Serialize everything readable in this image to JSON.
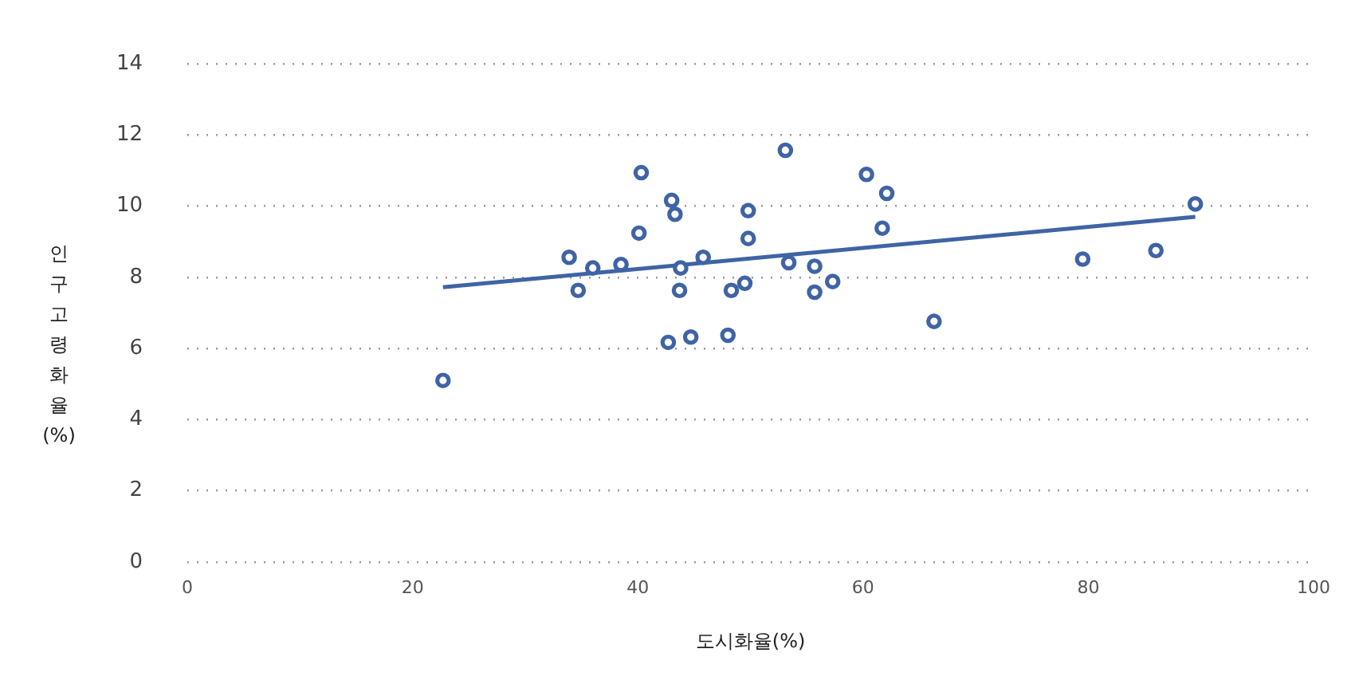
{
  "chart_data": {
    "type": "scatter",
    "xlabel": "도시화율(%)",
    "ylabel": "인구고령화율(%)",
    "xlim": [
      0,
      100
    ],
    "xticks": [
      0,
      20,
      40,
      60,
      80,
      100
    ],
    "ylim": [
      0,
      14
    ],
    "yticks": [
      0,
      2,
      4,
      6,
      8,
      10,
      12,
      14
    ],
    "grid": "y",
    "legend": false,
    "series": [
      {
        "marker": "circle",
        "color": "#3f64a5",
        "x": [
          22.7,
          33.9,
          34.7,
          36.0,
          38.5,
          40.1,
          40.3,
          42.7,
          43.0,
          43.3,
          43.7,
          43.8,
          44.7,
          45.8,
          48.0,
          48.3,
          49.5,
          49.8,
          49.8,
          53.1,
          53.4,
          55.7,
          55.7,
          57.3,
          60.3,
          61.7,
          62.1,
          66.3,
          79.5,
          86.0,
          89.5
        ],
        "values": [
          5.1,
          8.56,
          7.63,
          8.26,
          8.36,
          9.24,
          10.94,
          6.17,
          10.16,
          9.77,
          7.63,
          8.26,
          6.32,
          8.56,
          6.37,
          7.63,
          7.83,
          9.09,
          9.87,
          11.57,
          8.41,
          8.31,
          7.58,
          7.88,
          10.89,
          9.38,
          10.36,
          6.76,
          8.51,
          8.75,
          10.06
        ]
      },
      {
        "type": "line",
        "marker": "none",
        "color": "#3f64a5",
        "x": [
          22.7,
          89.5
        ],
        "values": [
          7.72,
          9.7
        ]
      }
    ]
  }
}
